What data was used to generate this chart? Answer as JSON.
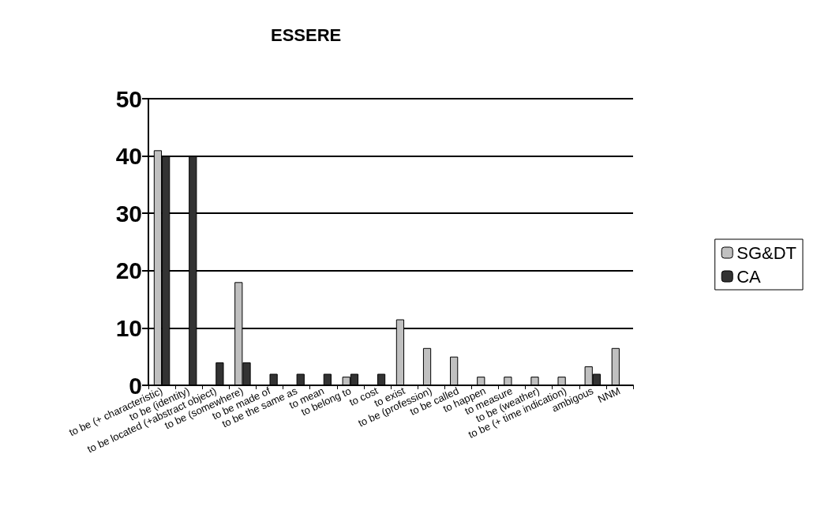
{
  "chart_data": {
    "type": "bar",
    "title": "ESSERE",
    "categories": [
      "to be (+ characteristic)",
      "to be (identity)",
      "to be located (+abstract object)",
      "to be (somewhere)",
      "to be made of",
      "to be the same as",
      "to mean",
      "to belong to",
      "to cost",
      "to exist",
      "to be (profession)",
      "to be called",
      "to happen",
      "to measure",
      "to be (weather)",
      "to be (+ time indication)",
      "ambigous",
      "NNM"
    ],
    "series": [
      {
        "name": "SG&DT",
        "color": "#c0c0c0",
        "values": [
          41,
          0,
          0,
          18,
          0,
          0,
          0,
          1.5,
          0,
          11.5,
          6.5,
          5,
          1.5,
          1.5,
          1.5,
          1.5,
          3.3,
          6.5
        ]
      },
      {
        "name": "CA",
        "color": "#333333",
        "values": [
          40,
          40,
          4,
          4,
          2,
          2,
          2,
          2,
          2,
          0,
          0,
          0,
          0,
          0,
          0,
          0,
          2,
          0
        ]
      }
    ],
    "ylim": [
      0,
      50
    ],
    "yticks": [
      0,
      10,
      20,
      30,
      40,
      50
    ],
    "grid": "y",
    "legend": "right"
  }
}
